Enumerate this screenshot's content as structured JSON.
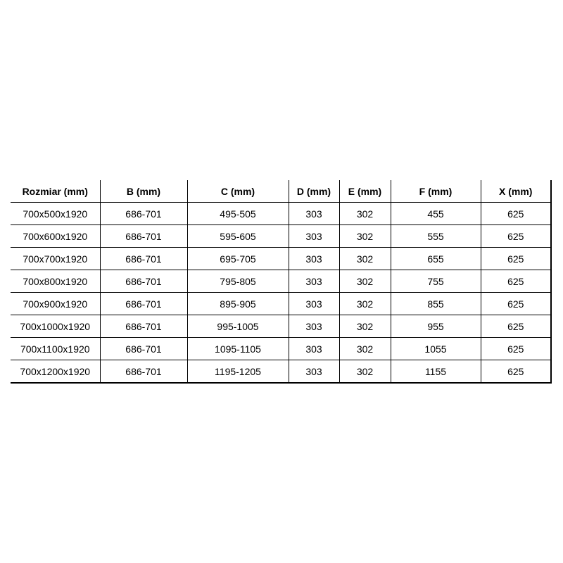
{
  "headers": [
    "Rozmiar (mm)",
    "B (mm)",
    "C (mm)",
    "D (mm)",
    "E (mm)",
    "F (mm)",
    "X (mm)"
  ],
  "rows": [
    [
      "700x500x1920",
      "686-701",
      "495-505",
      "303",
      "302",
      "455",
      "625"
    ],
    [
      "700x600x1920",
      "686-701",
      "595-605",
      "303",
      "302",
      "555",
      "625"
    ],
    [
      "700x700x1920",
      "686-701",
      "695-705",
      "303",
      "302",
      "655",
      "625"
    ],
    [
      "700x800x1920",
      "686-701",
      "795-805",
      "303",
      "302",
      "755",
      "625"
    ],
    [
      "700x900x1920",
      "686-701",
      "895-905",
      "303",
      "302",
      "855",
      "625"
    ],
    [
      "700x1000x1920",
      "686-701",
      "995-1005",
      "303",
      "302",
      "955",
      "625"
    ],
    [
      "700x1100x1920",
      "686-701",
      "1095-1105",
      "303",
      "302",
      "1055",
      "625"
    ],
    [
      "700x1200x1920",
      "686-701",
      "1195-1205",
      "303",
      "302",
      "1155",
      "625"
    ]
  ]
}
